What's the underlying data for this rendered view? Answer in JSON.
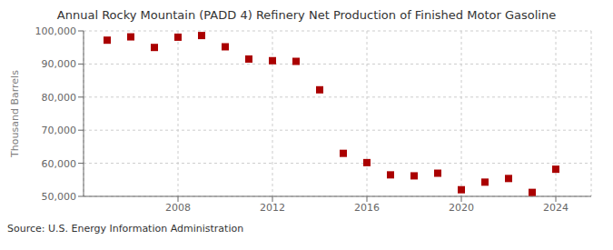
{
  "chart_data": {
    "type": "scatter",
    "title": "Annual Rocky Mountain (PADD 4) Refinery Net Production of Finished Motor Gasoline",
    "ylabel": "Thousand Barrels",
    "annotation": "Source: U.S. Energy Information Administration",
    "x": [
      2005,
      2006,
      2007,
      2008,
      2009,
      2010,
      2011,
      2012,
      2013,
      2014,
      2015,
      2016,
      2017,
      2018,
      2019,
      2020,
      2021,
      2022,
      2023,
      2024
    ],
    "values": [
      97200,
      98200,
      95000,
      98100,
      98600,
      95200,
      91500,
      91000,
      90800,
      82200,
      63000,
      60200,
      56500,
      56200,
      57000,
      52000,
      54300,
      55400,
      51200,
      58200
    ],
    "color": "#aa0000",
    "marker": "square",
    "grid": true,
    "xlim": [
      2004.0,
      2025.5
    ],
    "xticks": [
      2008,
      2012,
      2016,
      2020,
      2024
    ],
    "ylim": [
      50000,
      100000
    ],
    "yticks": [
      {
        "value": 50000,
        "label": "50,000"
      },
      {
        "value": 60000,
        "label": "60,000"
      },
      {
        "value": 70000,
        "label": "70,000"
      },
      {
        "value": 80000,
        "label": "80,000"
      },
      {
        "value": 90000,
        "label": "90,000"
      },
      {
        "value": 100000,
        "label": "100,000"
      }
    ]
  }
}
